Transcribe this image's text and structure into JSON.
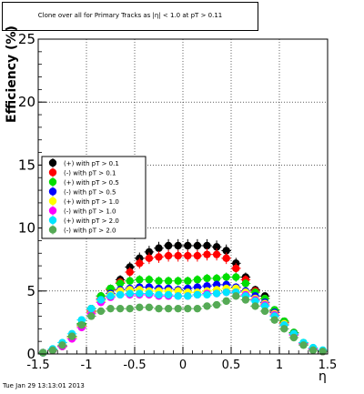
{
  "header": {
    "title": "Clone  over all for Primary Tracks as |η| < 1.0 at pT > 0.11"
  },
  "footer": {
    "timestamp": "Tue Jan 29 13:13:01 2013"
  },
  "chart_data": {
    "type": "scatter",
    "title": "Clone  over all for Primary Tracks as |η| < 1.0 at pT > 0.11",
    "xlabel": "η",
    "ylabel": "Efficiency (%)",
    "xlim": [
      -1.5,
      1.5
    ],
    "ylim": [
      0,
      25
    ],
    "xticks": [
      "-1.5",
      "-1",
      "-0.5",
      "0",
      "0.5",
      "1",
      "1.5"
    ],
    "yticks": [
      "0",
      "5",
      "10",
      "15",
      "20",
      "25"
    ],
    "grid": true,
    "legend_position": "left",
    "x": [
      -1.45,
      -1.35,
      -1.25,
      -1.15,
      -1.05,
      -0.95,
      -0.85,
      -0.75,
      -0.65,
      -0.55,
      -0.45,
      -0.35,
      -0.25,
      -0.15,
      -0.05,
      0.05,
      0.15,
      0.25,
      0.35,
      0.45,
      0.55,
      0.65,
      0.75,
      0.85,
      0.95,
      1.05,
      1.15,
      1.25,
      1.35,
      1.45
    ],
    "series": [
      {
        "name": "(+) with pT > 0.1",
        "color": "#000000",
        "values": [
          0.1,
          0.3,
          0.6,
          1.4,
          2.4,
          3.6,
          4.6,
          5.2,
          5.9,
          6.9,
          7.6,
          8.1,
          8.4,
          8.6,
          8.6,
          8.6,
          8.6,
          8.6,
          8.5,
          8.2,
          7.2,
          6.1,
          5.1,
          4.6,
          3.5,
          2.6,
          1.7,
          0.8,
          0.4,
          0.2
        ]
      },
      {
        "name": "(-) with pT > 0.1",
        "color": "#ff0000",
        "values": [
          0.1,
          0.3,
          0.6,
          1.3,
          2.3,
          3.4,
          4.4,
          5.1,
          5.7,
          6.5,
          7.2,
          7.6,
          7.7,
          7.8,
          7.8,
          7.8,
          7.8,
          7.9,
          7.9,
          7.6,
          6.8,
          5.9,
          5.0,
          4.4,
          3.4,
          2.5,
          1.6,
          0.8,
          0.4,
          0.2
        ]
      },
      {
        "name": "(+) with pT > 0.5",
        "color": "#00dd00",
        "values": [
          0.1,
          0.3,
          0.6,
          1.4,
          2.4,
          3.6,
          4.6,
          5.2,
          5.6,
          5.8,
          5.9,
          5.9,
          5.8,
          5.8,
          5.8,
          5.8,
          5.9,
          6.0,
          6.0,
          6.1,
          6.1,
          5.6,
          4.9,
          4.4,
          3.5,
          2.6,
          1.7,
          0.9,
          0.4,
          0.2
        ]
      },
      {
        "name": "(-) with pT > 0.5",
        "color": "#0000ff",
        "values": [
          0.1,
          0.3,
          0.6,
          1.3,
          2.2,
          3.3,
          4.3,
          4.8,
          5.1,
          5.2,
          5.3,
          5.3,
          5.2,
          5.2,
          5.1,
          5.2,
          5.3,
          5.4,
          5.5,
          5.5,
          5.3,
          5.0,
          4.6,
          4.1,
          3.3,
          2.4,
          1.6,
          0.8,
          0.4,
          0.2
        ]
      },
      {
        "name": "(+) with pT > 1.0",
        "color": "#ffff00",
        "values": [
          0.1,
          0.3,
          0.6,
          1.3,
          2.2,
          3.3,
          4.2,
          4.7,
          5.0,
          5.1,
          5.1,
          5.0,
          5.0,
          5.0,
          5.0,
          4.9,
          4.9,
          5.0,
          5.1,
          5.2,
          5.2,
          4.9,
          4.4,
          4.0,
          3.2,
          2.4,
          1.5,
          0.8,
          0.4,
          0.2
        ]
      },
      {
        "name": "(-) with pT > 1.0",
        "color": "#ff00ff",
        "values": [
          0.1,
          0.3,
          0.6,
          1.2,
          2.1,
          3.2,
          4.1,
          4.5,
          4.7,
          4.7,
          4.7,
          4.7,
          4.6,
          4.6,
          4.6,
          4.6,
          4.7,
          4.8,
          4.8,
          4.9,
          4.9,
          4.7,
          4.3,
          3.9,
          3.1,
          2.3,
          1.5,
          0.8,
          0.4,
          0.2
        ]
      },
      {
        "name": "(+) with pT > 2.0",
        "color": "#00e5ff",
        "values": [
          0.1,
          0.4,
          0.9,
          1.6,
          2.7,
          3.6,
          4.3,
          4.6,
          4.7,
          4.8,
          4.8,
          4.8,
          4.7,
          4.7,
          4.6,
          4.6,
          4.7,
          4.7,
          4.8,
          4.9,
          4.9,
          4.6,
          4.2,
          3.8,
          3.0,
          2.3,
          1.6,
          0.9,
          0.5,
          0.3
        ]
      },
      {
        "name": "(-) with pT > 2.0",
        "color": "#55aa55",
        "values": [
          0.1,
          0.3,
          0.7,
          1.4,
          2.3,
          3.0,
          3.4,
          3.6,
          3.6,
          3.6,
          3.7,
          3.7,
          3.6,
          3.6,
          3.6,
          3.6,
          3.6,
          3.8,
          3.9,
          4.2,
          4.6,
          4.3,
          3.8,
          3.4,
          2.7,
          2.0,
          1.3,
          0.7,
          0.3,
          0.2
        ]
      }
    ]
  }
}
